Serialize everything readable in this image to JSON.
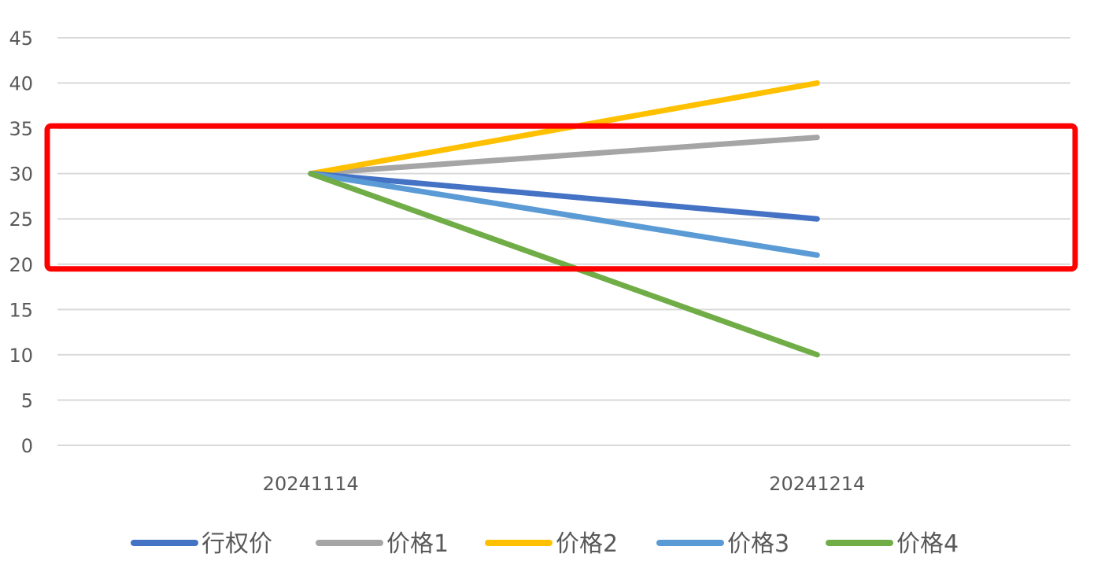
{
  "chart_data": {
    "type": "line",
    "title": "",
    "xlabel": "",
    "ylabel": "",
    "categories": [
      "20241114",
      "20241214"
    ],
    "ylim": [
      0,
      45
    ],
    "ytick_step": 5,
    "yticks": [
      "0",
      "5",
      "10",
      "15",
      "20",
      "25",
      "30",
      "35",
      "40",
      "45"
    ],
    "grid": true,
    "legend_position": "bottom",
    "series": [
      {
        "name": "行权价",
        "values": [
          30,
          25
        ],
        "color": "#4472C4"
      },
      {
        "name": "价格1",
        "values": [
          30,
          34
        ],
        "color": "#A5A5A5"
      },
      {
        "name": "价格2",
        "values": [
          30,
          40
        ],
        "color": "#FFC000"
      },
      {
        "name": "价格3",
        "values": [
          30,
          21
        ],
        "color": "#5B9BD5"
      },
      {
        "name": "价格4",
        "values": [
          30,
          10
        ],
        "color": "#70AD47"
      }
    ],
    "highlight_box": {
      "y_range": [
        20,
        35
      ],
      "color": "#FF0000"
    }
  }
}
